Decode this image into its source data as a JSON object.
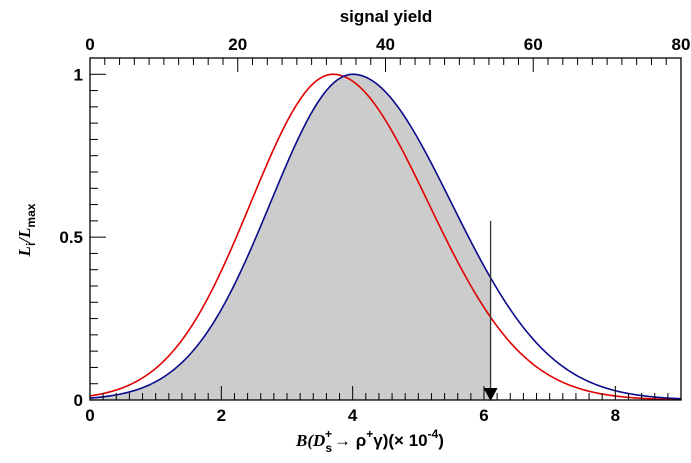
{
  "chart_data": {
    "type": "line",
    "top_axis": {
      "label": "signal yield",
      "range": [
        0,
        80
      ],
      "ticks": [
        0,
        20,
        40,
        60,
        80
      ]
    },
    "xlabel": "B(Ds+→ ρ+γ)(× 10-4)",
    "xlabel_parts": {
      "B": "B(D",
      "sub": "s",
      "sup": "+",
      "arrow": "→ ρ",
      "sup2": "+",
      "gamma": "γ)(× 10",
      "exp": "-4",
      "close": ")"
    },
    "ylabel": "Li/Lmax",
    "ylabel_parts": {
      "L1": "L",
      "sub1": "i",
      "slash": "/L",
      "sub2": "max"
    },
    "xlim": [
      0,
      9
    ],
    "ylim": [
      0,
      1.05
    ],
    "x_ticks": [
      0,
      2,
      4,
      6,
      8
    ],
    "y_ticks": [
      0,
      0.5,
      1
    ],
    "y_tick_labels": [
      "0",
      "0.5",
      "1"
    ],
    "series": [
      {
        "color": "#0a0a8c",
        "peak_x": 4.0,
        "sigma_left": 1.25,
        "sigma_right": 1.5,
        "filled_below_x": 6.1,
        "fill_color": "#cccccc"
      },
      {
        "color": "#e00000",
        "peak_x": 3.7,
        "sigma_left": 1.25,
        "sigma_right": 1.45
      }
    ],
    "upper_limit": {
      "x": 6.1,
      "y_top": 0.55
    }
  }
}
